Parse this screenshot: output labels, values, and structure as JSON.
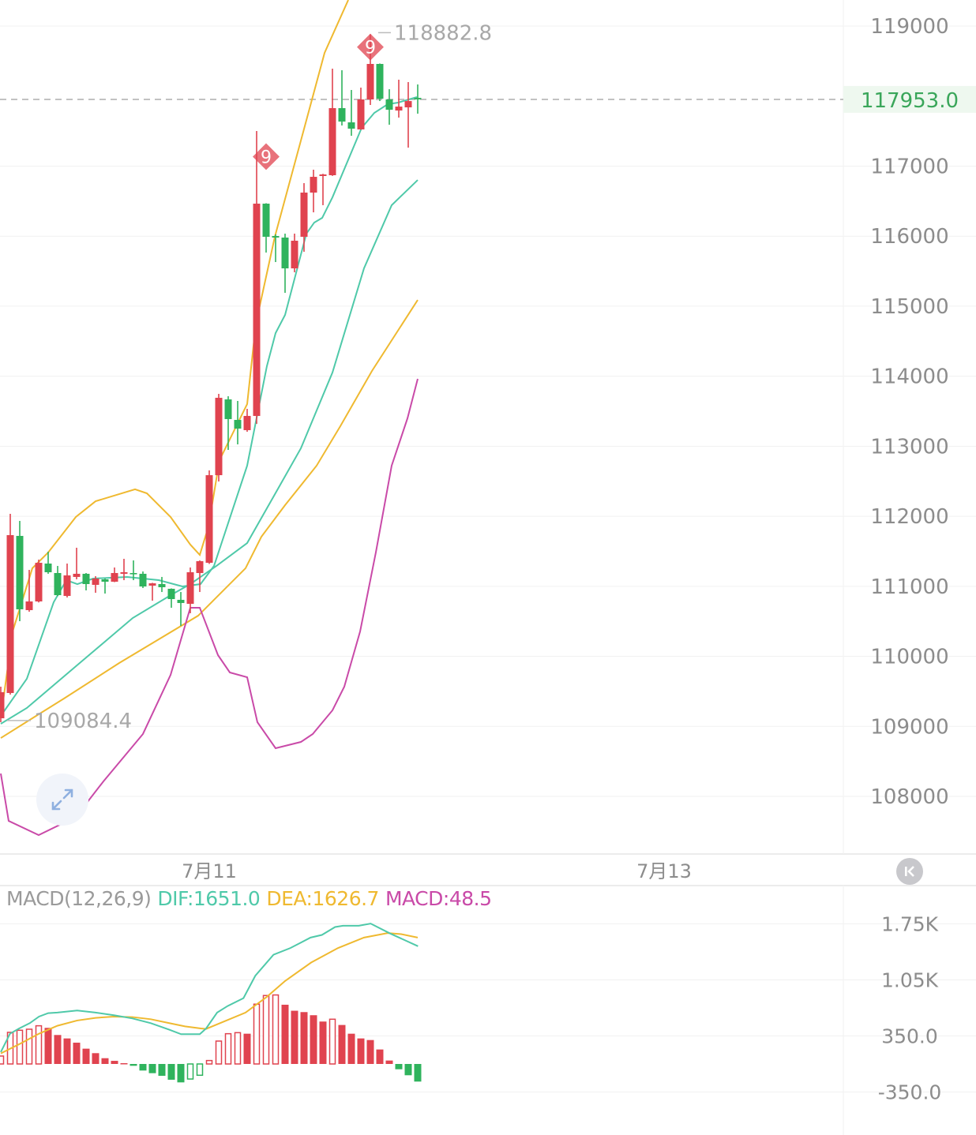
{
  "chart_data": {
    "type": "candlestick",
    "title": "",
    "price_axis": {
      "ticks": [
        119000,
        117000,
        116000,
        115000,
        114000,
        113000,
        112000,
        111000,
        110000,
        109000,
        108000
      ],
      "tick_labels": [
        "119000",
        "117000",
        "116000",
        "115000",
        "114000",
        "113000",
        "112000",
        "111000",
        "110000",
        "109000",
        "108000"
      ],
      "ylim": [
        107300,
        119400
      ]
    },
    "time_axis": {
      "ticks": [
        {
          "label": "7月11",
          "index": 22
        },
        {
          "label": "7月13",
          "index": 70
        }
      ]
    },
    "current_price": {
      "value": 117953.0,
      "label": "117953.0"
    },
    "high_marker": {
      "value": 118882.8,
      "label": "118882.8",
      "index": 39
    },
    "low_marker": {
      "value": 109084.4,
      "label": "109084.4",
      "index": 0
    },
    "signal_markers": [
      {
        "label": "9",
        "index": 27,
        "price": 117000
      },
      {
        "label": "9",
        "index": 39,
        "price": 118700
      }
    ],
    "candles": [
      [
        109116,
        109567,
        109060,
        109488
      ],
      [
        109477,
        112035,
        109455,
        111731
      ],
      [
        111720,
        111934,
        110502,
        110672
      ],
      [
        110660,
        111235,
        110637,
        110784
      ],
      [
        110784,
        111381,
        110770,
        111336
      ],
      [
        111325,
        111494,
        111179,
        111201
      ],
      [
        111190,
        111291,
        110860,
        110874
      ],
      [
        110863,
        111325,
        110841,
        111156
      ],
      [
        111134,
        111551,
        111100,
        111179
      ],
      [
        111179,
        111190,
        110942,
        111032
      ],
      [
        111021,
        111145,
        110908,
        111111
      ],
      [
        111100,
        111111,
        110897,
        111066
      ],
      [
        111066,
        111269,
        111060,
        111190
      ],
      [
        111179,
        111393,
        111088,
        111201
      ],
      [
        111190,
        111370,
        111088,
        111179
      ],
      [
        111179,
        111212,
        110976,
        110998
      ],
      [
        111010,
        111050,
        110795,
        111043
      ],
      [
        111032,
        111134,
        110919,
        110987
      ],
      [
        110965,
        110970,
        110694,
        110818
      ],
      [
        110807,
        110919,
        110435,
        110762
      ],
      [
        110750,
        111269,
        110615,
        111201
      ],
      [
        111190,
        111370,
        110919,
        111359
      ],
      [
        111336,
        112655,
        111320,
        112587
      ],
      [
        112587,
        113748,
        112497,
        113692
      ],
      [
        113669,
        113714,
        112948,
        113388
      ],
      [
        113376,
        113647,
        113027,
        113252
      ],
      [
        113230,
        113534,
        113207,
        113433
      ],
      [
        113433,
        117501,
        113320,
        116464
      ],
      [
        116464,
        116470,
        115766,
        115991
      ],
      [
        116002,
        116025,
        115630,
        115980
      ],
      [
        115980,
        116036,
        115191,
        115540
      ],
      [
        115540,
        116036,
        115484,
        115935
      ],
      [
        115991,
        116757,
        115777,
        116622
      ],
      [
        116622,
        116949,
        116340,
        116847
      ],
      [
        116859,
        116890,
        116442,
        116881
      ],
      [
        116870,
        118391,
        116860,
        117828
      ],
      [
        117828,
        118369,
        117580,
        117636
      ],
      [
        117625,
        118087,
        117433,
        117535
      ],
      [
        117524,
        118121,
        117520,
        117952
      ],
      [
        117952,
        118882.8,
        117873,
        118459
      ],
      [
        118459,
        118465,
        117929,
        117963
      ],
      [
        117952,
        118098,
        117591,
        117805
      ],
      [
        117794,
        118234,
        117693,
        117850
      ],
      [
        117839,
        118200,
        117264,
        117929
      ],
      [
        117975,
        118166,
        117749,
        117953
      ]
    ],
    "overlay_lines": [
      {
        "name": "upper",
        "color": "#efb930",
        "points": [
          [
            0,
            109116
          ],
          [
            1.25,
            110356
          ],
          [
            3.33,
            111258
          ],
          [
            5,
            111483
          ],
          [
            7.92,
            111990
          ],
          [
            10,
            112215
          ],
          [
            14.17,
            112385
          ],
          [
            15.42,
            112328
          ],
          [
            17.92,
            111990
          ],
          [
            20,
            111596
          ],
          [
            21,
            111449
          ],
          [
            21.92,
            111855
          ],
          [
            23.08,
            112801
          ],
          [
            26,
            113602
          ],
          [
            26.92,
            114751
          ],
          [
            28.92,
            115991
          ],
          [
            31.92,
            117490
          ],
          [
            34.17,
            118617
          ],
          [
            36.67,
            119372
          ]
        ]
      },
      {
        "name": "lower",
        "color": "#efb930",
        "points": [
          [
            0,
            108834
          ],
          [
            3.33,
            109116
          ],
          [
            6.67,
            109398
          ],
          [
            12.5,
            109905
          ],
          [
            16.67,
            110243
          ],
          [
            20.83,
            110581
          ],
          [
            22.5,
            110807
          ],
          [
            25.83,
            111258
          ],
          [
            27.5,
            111708
          ],
          [
            30,
            112159
          ],
          [
            33.33,
            112723
          ],
          [
            35.83,
            113286
          ],
          [
            39.17,
            114075
          ],
          [
            44,
            115089
          ]
        ]
      },
      {
        "name": "fast",
        "color": "#4fc9a9",
        "points": [
          [
            0,
            109150
          ],
          [
            2.75,
            109680
          ],
          [
            5.58,
            110773
          ],
          [
            6.92,
            111088
          ],
          [
            8.08,
            111032
          ],
          [
            9.75,
            111111
          ],
          [
            13.33,
            111134
          ],
          [
            16.67,
            111088
          ],
          [
            19.17,
            110998
          ],
          [
            21.08,
            111032
          ],
          [
            22.5,
            111291
          ],
          [
            26,
            112723
          ],
          [
            28.08,
            114143
          ],
          [
            29,
            114616
          ],
          [
            30,
            114875
          ],
          [
            32.25,
            116036
          ],
          [
            33.08,
            116194
          ],
          [
            33.92,
            116261
          ],
          [
            35,
            116554
          ],
          [
            38.08,
            117546
          ],
          [
            39.42,
            117760
          ],
          [
            40.83,
            117884
          ],
          [
            41.92,
            117907
          ],
          [
            43.92,
            117986
          ]
        ]
      },
      {
        "name": "slow",
        "color": "#4fc9a9",
        "points": [
          [
            0,
            109037
          ],
          [
            2.75,
            109263
          ],
          [
            8.33,
            109905
          ],
          [
            13.92,
            110547
          ],
          [
            18.08,
            110886
          ],
          [
            20,
            111032
          ],
          [
            22.75,
            111291
          ],
          [
            26,
            111618
          ],
          [
            29.17,
            112373
          ],
          [
            31.67,
            112971
          ],
          [
            35,
            114052
          ],
          [
            38.33,
            115540
          ],
          [
            41.25,
            116442
          ],
          [
            44,
            116802
          ]
        ]
      },
      {
        "name": "magenta",
        "color": "#c94aa8",
        "points": [
          [
            0,
            108327
          ],
          [
            0.83,
            107651
          ],
          [
            4,
            107448
          ],
          [
            7.92,
            107707
          ],
          [
            10.83,
            108215
          ],
          [
            15,
            108891
          ],
          [
            17.92,
            109736
          ],
          [
            20,
            110694
          ],
          [
            21,
            110694
          ],
          [
            22.92,
            110018
          ],
          [
            24.17,
            109770
          ],
          [
            26,
            109702
          ],
          [
            27.08,
            109060
          ],
          [
            29,
            108688
          ],
          [
            31.67,
            108778
          ],
          [
            32.92,
            108891
          ],
          [
            35,
            109229
          ],
          [
            36.25,
            109567
          ],
          [
            37.92,
            110356
          ],
          [
            39.58,
            111483
          ],
          [
            41.25,
            112723
          ],
          [
            42.92,
            113399
          ],
          [
            44,
            113962
          ]
        ]
      }
    ],
    "macd": {
      "legend": {
        "name": "MACD(12,26,9)",
        "dif": "DIF:1651.0",
        "dea": "DEA:1626.7",
        "macd": "MACD:48.5"
      },
      "ticks": [
        1750,
        1050,
        350,
        -350
      ],
      "tick_labels": [
        "1.75K",
        "1.05K",
        "350.0",
        "-350.0"
      ],
      "histogram": [
        99,
        395,
        421,
        434,
        477,
        451,
        362,
        319,
        266,
        191,
        135,
        72,
        39,
        10,
        -23,
        -82,
        -115,
        -148,
        -197,
        -230,
        -188,
        -141,
        43,
        286,
        378,
        391,
        378,
        747,
        855,
        862,
        740,
        665,
        648,
        609,
        530,
        559,
        487,
        378,
        319,
        299,
        181,
        43,
        -66,
        -141,
        -220
      ],
      "hollow": [
        1,
        1,
        1,
        1,
        1,
        0,
        0,
        0,
        0,
        0,
        0,
        0,
        0,
        0,
        0,
        0,
        0,
        0,
        0,
        0,
        1,
        1,
        1,
        1,
        1,
        1,
        0,
        1,
        1,
        1,
        0,
        0,
        0,
        0,
        0,
        1,
        0,
        0,
        0,
        0,
        0,
        0,
        0,
        0,
        0
      ],
      "dif": [
        [
          0,
          148
        ],
        [
          0.97,
          378
        ],
        [
          1.94,
          444
        ],
        [
          3.06,
          510
        ],
        [
          4.03,
          592
        ],
        [
          5,
          635
        ],
        [
          5.97,
          642
        ],
        [
          8.06,
          668
        ],
        [
          10,
          642
        ],
        [
          11.94,
          609
        ],
        [
          13.89,
          569
        ],
        [
          15.83,
          510
        ],
        [
          17.78,
          428
        ],
        [
          19.03,
          372
        ],
        [
          21,
          372
        ],
        [
          21.67,
          444
        ],
        [
          22.83,
          642
        ],
        [
          23.94,
          724
        ],
        [
          25.61,
          822
        ],
        [
          26.86,
          1102
        ],
        [
          28.78,
          1365
        ],
        [
          30.56,
          1448
        ],
        [
          32.69,
          1579
        ],
        [
          33.89,
          1612
        ],
        [
          35.28,
          1711
        ],
        [
          36.11,
          1727
        ],
        [
          37.78,
          1727
        ],
        [
          39.03,
          1754
        ],
        [
          41.11,
          1629
        ],
        [
          44.03,
          1471
        ]
      ],
      "dea": [
        [
          0,
          132
        ],
        [
          1.94,
          247
        ],
        [
          4.03,
          378
        ],
        [
          5.97,
          477
        ],
        [
          8.06,
          543
        ],
        [
          10,
          576
        ],
        [
          11.94,
          592
        ],
        [
          13.89,
          586
        ],
        [
          15.83,
          559
        ],
        [
          17.78,
          510
        ],
        [
          19.44,
          470
        ],
        [
          21.11,
          444
        ],
        [
          21.67,
          438
        ],
        [
          25.83,
          642
        ],
        [
          28.08,
          839
        ],
        [
          30,
          1036
        ],
        [
          32.75,
          1267
        ],
        [
          35.58,
          1448
        ],
        [
          38.33,
          1579
        ],
        [
          40.83,
          1635
        ],
        [
          42.25,
          1622
        ],
        [
          44,
          1579
        ]
      ]
    },
    "colors": {
      "up": "#e0434f",
      "down": "#2fb35d",
      "dif": "#4fc9a9",
      "dea": "#efb930",
      "macd": "#c94aa8",
      "axis_text": "#8c8c8c",
      "current_price": "#3aa65a",
      "current_price_bg": "#eef8ef"
    }
  },
  "controls": {
    "collapse_icon": "double-chevron-left-icon",
    "expand_icon": "expand-arrows-icon"
  }
}
